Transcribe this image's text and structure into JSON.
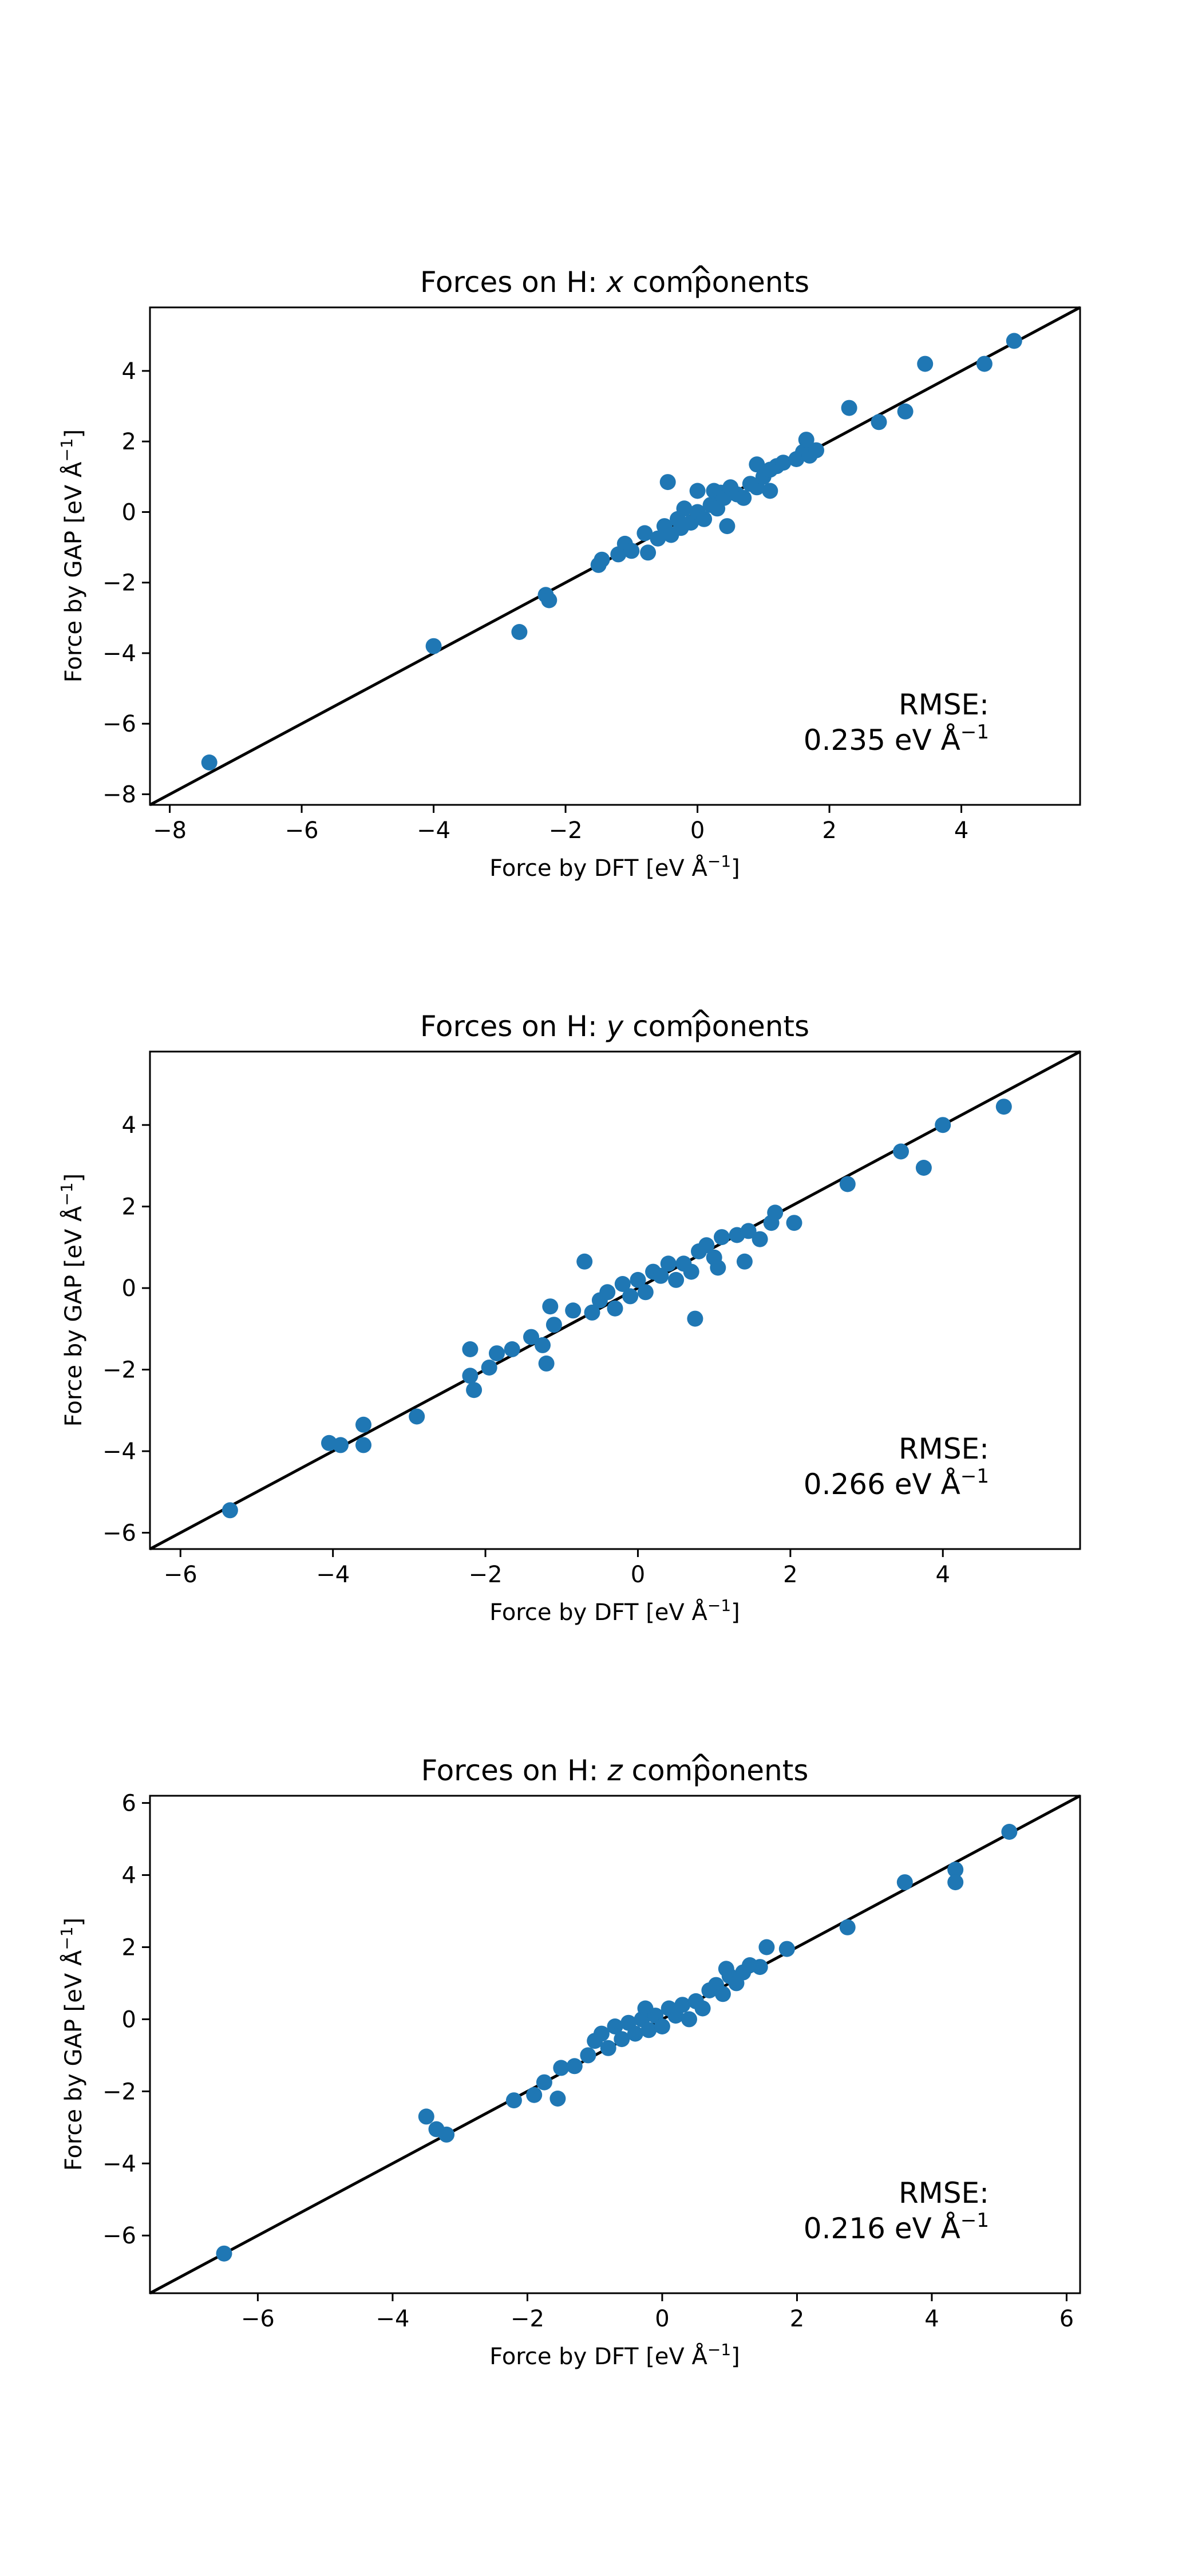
{
  "chart_data": [
    {
      "type": "scatter",
      "title_prefix": "Forces on H: ",
      "title_var": "x",
      "title_suffix": " components",
      "xlabel": "Force by DFT [eV Å",
      "ylabel": "Force by GAP [eV Å",
      "label_sup": "−1",
      "label_close": "]",
      "xlim": [
        -8.3,
        5.8
      ],
      "ylim": [
        -8.3,
        5.8
      ],
      "xticks": [
        -8,
        -6,
        -4,
        -2,
        0,
        2,
        4
      ],
      "yticks": [
        -8,
        -6,
        -4,
        -2,
        0,
        2,
        4
      ],
      "tick_labels_x": [
        "−8",
        "−6",
        "−4",
        "−2",
        "0",
        "2",
        "4"
      ],
      "tick_labels_y": [
        "−8",
        "−6",
        "−4",
        "−2",
        "0",
        "2",
        "4"
      ],
      "annotation_line1": "RMSE:",
      "annotation_line2": "0.235 eV Å",
      "annotation_sup": "−1",
      "points": [
        [
          -7.4,
          -7.1
        ],
        [
          -4.0,
          -3.8
        ],
        [
          -2.7,
          -3.4
        ],
        [
          -2.3,
          -2.35
        ],
        [
          -2.25,
          -2.5
        ],
        [
          -1.5,
          -1.5
        ],
        [
          -1.45,
          -1.35
        ],
        [
          -1.2,
          -1.2
        ],
        [
          -1.1,
          -0.9
        ],
        [
          -1.0,
          -1.1
        ],
        [
          -0.8,
          -0.6
        ],
        [
          -0.75,
          -1.15
        ],
        [
          -0.6,
          -0.75
        ],
        [
          -0.5,
          -0.4
        ],
        [
          -0.45,
          0.85
        ],
        [
          -0.4,
          -0.65
        ],
        [
          -0.3,
          -0.2
        ],
        [
          -0.25,
          -0.45
        ],
        [
          -0.2,
          0.1
        ],
        [
          -0.1,
          -0.3
        ],
        [
          0.0,
          0.0
        ],
        [
          0.0,
          0.6
        ],
        [
          0.1,
          -0.2
        ],
        [
          0.2,
          0.2
        ],
        [
          0.25,
          0.6
        ],
        [
          0.3,
          0.1
        ],
        [
          0.35,
          0.55
        ],
        [
          0.4,
          0.4
        ],
        [
          0.45,
          -0.4
        ],
        [
          0.5,
          0.7
        ],
        [
          0.6,
          0.5
        ],
        [
          0.7,
          0.4
        ],
        [
          0.8,
          0.8
        ],
        [
          0.9,
          0.7
        ],
        [
          0.9,
          1.35
        ],
        [
          1.0,
          1.0
        ],
        [
          1.1,
          1.2
        ],
        [
          1.1,
          0.6
        ],
        [
          1.2,
          1.3
        ],
        [
          1.3,
          1.4
        ],
        [
          1.5,
          1.5
        ],
        [
          1.6,
          1.7
        ],
        [
          1.65,
          2.05
        ],
        [
          1.7,
          1.6
        ],
        [
          1.8,
          1.75
        ],
        [
          2.3,
          2.95
        ],
        [
          2.75,
          2.55
        ],
        [
          3.15,
          2.85
        ],
        [
          3.45,
          4.2
        ],
        [
          4.35,
          4.2
        ],
        [
          4.8,
          4.85
        ]
      ]
    },
    {
      "type": "scatter",
      "title_prefix": "Forces on H: ",
      "title_var": "y",
      "title_suffix": " components",
      "xlabel": "Force by DFT [eV Å",
      "ylabel": "Force by GAP [eV Å",
      "label_sup": "−1",
      "label_close": "]",
      "xlim": [
        -6.4,
        5.8
      ],
      "ylim": [
        -6.4,
        5.8
      ],
      "xticks": [
        -6,
        -4,
        -2,
        0,
        2,
        4
      ],
      "yticks": [
        -6,
        -4,
        -2,
        0,
        2,
        4
      ],
      "tick_labels_x": [
        "−6",
        "−4",
        "−2",
        "0",
        "2",
        "4"
      ],
      "tick_labels_y": [
        "−6",
        "−4",
        "−2",
        "0",
        "2",
        "4"
      ],
      "annotation_line1": "RMSE:",
      "annotation_line2": "0.266 eV Å",
      "annotation_sup": "−1",
      "points": [
        [
          -5.35,
          -5.45
        ],
        [
          -4.05,
          -3.8
        ],
        [
          -3.9,
          -3.85
        ],
        [
          -3.6,
          -3.35
        ],
        [
          -3.6,
          -3.85
        ],
        [
          -2.9,
          -3.15
        ],
        [
          -2.2,
          -1.5
        ],
        [
          -2.2,
          -2.15
        ],
        [
          -2.15,
          -2.5
        ],
        [
          -1.95,
          -1.95
        ],
        [
          -1.85,
          -1.6
        ],
        [
          -1.65,
          -1.5
        ],
        [
          -1.4,
          -1.2
        ],
        [
          -1.25,
          -1.4
        ],
        [
          -1.2,
          -1.85
        ],
        [
          -1.15,
          -0.45
        ],
        [
          -1.1,
          -0.9
        ],
        [
          -0.85,
          -0.55
        ],
        [
          -0.7,
          0.65
        ],
        [
          -0.6,
          -0.6
        ],
        [
          -0.5,
          -0.3
        ],
        [
          -0.4,
          -0.1
        ],
        [
          -0.3,
          -0.5
        ],
        [
          -0.2,
          0.1
        ],
        [
          -0.1,
          -0.2
        ],
        [
          0.0,
          0.2
        ],
        [
          0.1,
          -0.1
        ],
        [
          0.2,
          0.4
        ],
        [
          0.3,
          0.3
        ],
        [
          0.4,
          0.6
        ],
        [
          0.5,
          0.2
        ],
        [
          0.6,
          0.6
        ],
        [
          0.7,
          0.4
        ],
        [
          0.75,
          -0.75
        ],
        [
          0.8,
          0.9
        ],
        [
          0.9,
          1.05
        ],
        [
          1.0,
          0.75
        ],
        [
          1.05,
          0.5
        ],
        [
          1.1,
          1.25
        ],
        [
          1.3,
          1.3
        ],
        [
          1.4,
          0.65
        ],
        [
          1.45,
          1.4
        ],
        [
          1.6,
          1.2
        ],
        [
          1.75,
          1.6
        ],
        [
          1.8,
          1.85
        ],
        [
          2.05,
          1.6
        ],
        [
          2.75,
          2.55
        ],
        [
          3.45,
          3.35
        ],
        [
          3.75,
          2.95
        ],
        [
          4.0,
          4.0
        ],
        [
          4.8,
          4.45
        ]
      ]
    },
    {
      "type": "scatter",
      "title_prefix": "Forces on H: ",
      "title_var": "z",
      "title_suffix": " components",
      "xlabel": "Force by DFT [eV Å",
      "ylabel": "Force by GAP [eV Å",
      "label_sup": "−1",
      "label_close": "]",
      "xlim": [
        -7.6,
        6.2
      ],
      "ylim": [
        -7.6,
        6.2
      ],
      "xticks": [
        -6,
        -4,
        -2,
        0,
        2,
        4,
        6
      ],
      "yticks": [
        -6,
        -4,
        -2,
        0,
        2,
        4,
        6
      ],
      "tick_labels_x": [
        "−6",
        "−4",
        "−2",
        "0",
        "2",
        "4",
        "6"
      ],
      "tick_labels_y": [
        "−6",
        "−4",
        "−2",
        "0",
        "2",
        "4",
        "6"
      ],
      "annotation_line1": "RMSE:",
      "annotation_line2": "0.216 eV Å",
      "annotation_sup": "−1",
      "points": [
        [
          -6.5,
          -6.5
        ],
        [
          -3.5,
          -2.7
        ],
        [
          -3.35,
          -3.05
        ],
        [
          -3.2,
          -3.2
        ],
        [
          -2.2,
          -2.25
        ],
        [
          -1.9,
          -2.1
        ],
        [
          -1.75,
          -1.75
        ],
        [
          -1.55,
          -2.2
        ],
        [
          -1.5,
          -1.35
        ],
        [
          -1.3,
          -1.3
        ],
        [
          -1.1,
          -1.0
        ],
        [
          -1.0,
          -0.6
        ],
        [
          -0.9,
          -0.4
        ],
        [
          -0.8,
          -0.8
        ],
        [
          -0.7,
          -0.2
        ],
        [
          -0.6,
          -0.55
        ],
        [
          -0.5,
          -0.1
        ],
        [
          -0.4,
          -0.4
        ],
        [
          -0.3,
          0.0
        ],
        [
          -0.25,
          0.3
        ],
        [
          -0.2,
          -0.3
        ],
        [
          -0.1,
          0.1
        ],
        [
          0.0,
          -0.2
        ],
        [
          0.1,
          0.3
        ],
        [
          0.2,
          0.1
        ],
        [
          0.3,
          0.4
        ],
        [
          0.4,
          0.0
        ],
        [
          0.5,
          0.5
        ],
        [
          0.6,
          0.3
        ],
        [
          0.7,
          0.8
        ],
        [
          0.8,
          0.95
        ],
        [
          0.9,
          0.7
        ],
        [
          0.95,
          1.4
        ],
        [
          1.0,
          1.2
        ],
        [
          1.1,
          1.0
        ],
        [
          1.2,
          1.3
        ],
        [
          1.3,
          1.5
        ],
        [
          1.45,
          1.45
        ],
        [
          1.55,
          2.0
        ],
        [
          1.85,
          1.95
        ],
        [
          2.75,
          2.55
        ],
        [
          3.6,
          3.8
        ],
        [
          4.35,
          4.15
        ],
        [
          4.35,
          3.8
        ],
        [
          5.15,
          5.2
        ]
      ]
    }
  ]
}
